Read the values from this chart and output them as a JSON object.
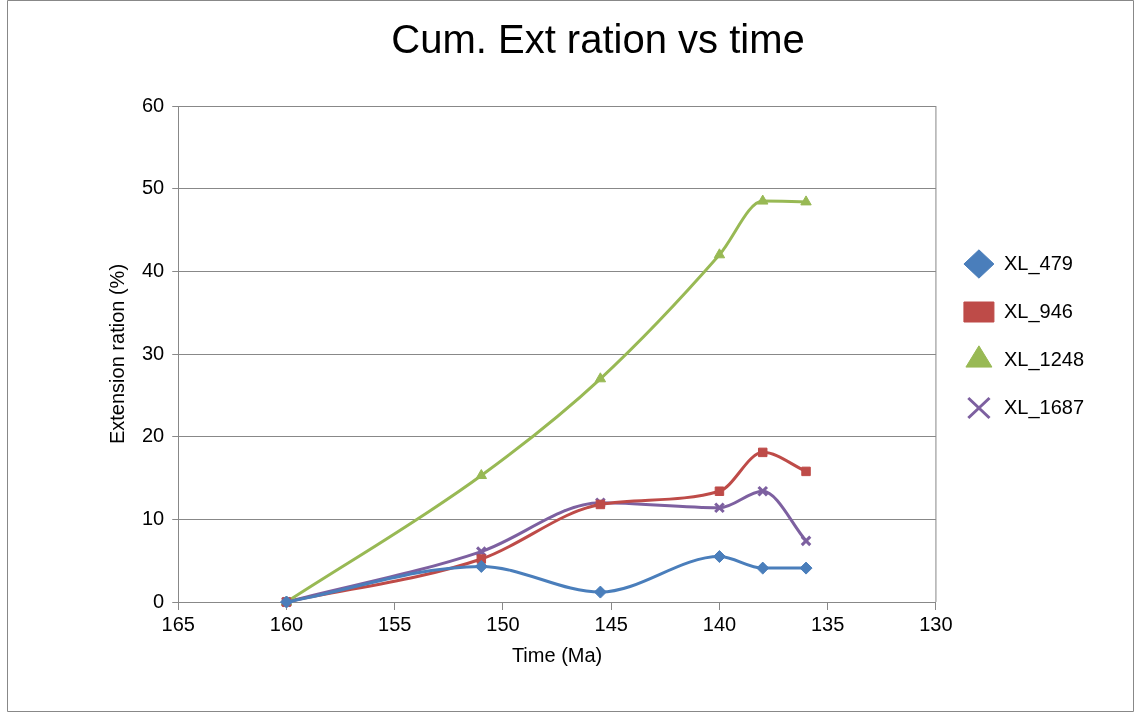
{
  "chart_data": {
    "type": "line",
    "title": "Cum. Ext ration vs time",
    "xlabel": "Time (Ma)",
    "ylabel": "Extension ration (%)",
    "x": [
      160,
      151,
      145.5,
      140,
      138,
      136
    ],
    "series": [
      {
        "name": "XL_479",
        "color": "#4a7ebb",
        "marker": "diamond",
        "values": [
          0,
          4.3,
          1.2,
          5.5,
          4.1,
          4.1
        ]
      },
      {
        "name": "XL_946",
        "color": "#be4b48",
        "marker": "square",
        "values": [
          0,
          5.2,
          11.8,
          13.4,
          18.1,
          15.8
        ]
      },
      {
        "name": "XL_1248",
        "color": "#98b954",
        "marker": "triangle",
        "values": [
          0,
          15.3,
          27,
          42,
          48.5,
          48.4
        ]
      },
      {
        "name": "XL_1687",
        "color": "#7d60a0",
        "marker": "cross",
        "values": [
          0,
          6.1,
          12,
          11.4,
          13.4,
          7.4
        ]
      }
    ],
    "xlim": [
      165,
      130
    ],
    "xticks": [
      165,
      160,
      155,
      150,
      145,
      140,
      135,
      130
    ],
    "ylim": [
      0,
      60
    ],
    "yticks": [
      0,
      10,
      20,
      30,
      40,
      50,
      60
    ],
    "grid": "y",
    "legend": "right"
  }
}
